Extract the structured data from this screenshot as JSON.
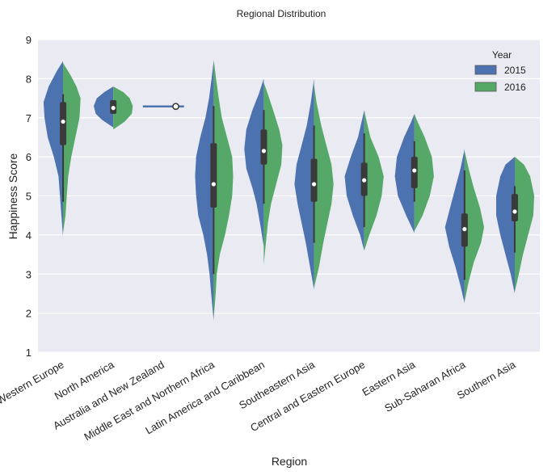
{
  "chart_data": {
    "type": "violin",
    "title": "Regional Distribution",
    "xlabel": "Region",
    "ylabel": "Happiness Score",
    "ylim": [
      1,
      9
    ],
    "yticks": [
      1,
      2,
      3,
      4,
      5,
      6,
      7,
      8,
      9
    ],
    "grid": true,
    "legend": {
      "title": "Year",
      "position": "top-right",
      "entries": [
        "2015",
        "2016"
      ]
    },
    "colors": {
      "2015": "#4c72b0",
      "2016": "#55a868",
      "background": "#eaeaf2"
    },
    "categories": [
      "Western Europe",
      "North America",
      "Australia and New Zealand",
      "Middle East and Northern Africa",
      "Latin America and Caribbean",
      "Southeastern Asia",
      "Central and Eastern Europe",
      "Eastern Asia",
      "Sub-Saharan Africa",
      "Southern Asia"
    ],
    "regions": [
      {
        "name": "Western Europe",
        "median": 6.9,
        "q1": 6.3,
        "q3": 7.4,
        "whisker": [
          4.85,
          7.6
        ],
        "s2015": {
          "range": [
            3.95,
            8.45
          ],
          "profile": [
            [
              3.95,
              0
            ],
            [
              4.5,
              0.08
            ],
            [
              5.0,
              0.15
            ],
            [
              5.5,
              0.22
            ],
            [
              6.0,
              0.45
            ],
            [
              6.5,
              0.75
            ],
            [
              7.0,
              0.9
            ],
            [
              7.4,
              0.95
            ],
            [
              7.8,
              0.7
            ],
            [
              8.2,
              0.3
            ],
            [
              8.45,
              0
            ]
          ]
        },
        "s2016": {
          "range": [
            4.05,
            8.4
          ],
          "profile": [
            [
              4.05,
              0
            ],
            [
              4.5,
              0.12
            ],
            [
              5.0,
              0.18
            ],
            [
              5.5,
              0.25
            ],
            [
              6.0,
              0.4
            ],
            [
              6.5,
              0.6
            ],
            [
              7.0,
              0.8
            ],
            [
              7.5,
              0.85
            ],
            [
              7.8,
              0.65
            ],
            [
              8.1,
              0.35
            ],
            [
              8.4,
              0
            ]
          ]
        }
      },
      {
        "name": "North America",
        "median": 7.25,
        "q1": 7.1,
        "q3": 7.45,
        "whisker": [
          7.1,
          7.45
        ],
        "s2015": {
          "range": [
            6.75,
            7.8
          ],
          "profile": [
            [
              6.75,
              0
            ],
            [
              6.95,
              0.55
            ],
            [
              7.1,
              0.85
            ],
            [
              7.3,
              0.95
            ],
            [
              7.5,
              0.8
            ],
            [
              7.65,
              0.45
            ],
            [
              7.8,
              0
            ]
          ]
        },
        "s2016": {
          "range": [
            6.7,
            7.8
          ],
          "profile": [
            [
              6.7,
              0
            ],
            [
              6.9,
              0.55
            ],
            [
              7.1,
              0.9
            ],
            [
              7.3,
              0.95
            ],
            [
              7.5,
              0.8
            ],
            [
              7.65,
              0.5
            ],
            [
              7.8,
              0
            ]
          ]
        }
      },
      {
        "name": "Australia and New Zealand",
        "median": 7.29,
        "q1": 7.28,
        "q3": 7.29,
        "whisker": [
          7.28,
          7.29
        ],
        "s2015": {
          "range": [
            7.28,
            7.29
          ],
          "profile": []
        },
        "s2016": {
          "range": [
            7.28,
            7.29
          ],
          "profile": []
        }
      },
      {
        "name": "Middle East and Northern Africa",
        "median": 5.3,
        "q1": 4.7,
        "q3": 6.35,
        "whisker": [
          3.0,
          7.3
        ],
        "s2015": {
          "range": [
            1.8,
            8.45
          ],
          "profile": [
            [
              1.8,
              0
            ],
            [
              2.5,
              0.12
            ],
            [
              3.0,
              0.2
            ],
            [
              3.5,
              0.32
            ],
            [
              4.0,
              0.5
            ],
            [
              4.5,
              0.75
            ],
            [
              5.0,
              0.85
            ],
            [
              5.5,
              0.9
            ],
            [
              6.0,
              0.85
            ],
            [
              6.5,
              0.65
            ],
            [
              7.0,
              0.4
            ],
            [
              7.5,
              0.22
            ],
            [
              8.0,
              0.1
            ],
            [
              8.45,
              0
            ]
          ]
        },
        "s2016": {
          "range": [
            1.85,
            8.5
          ],
          "profile": [
            [
              1.85,
              0
            ],
            [
              2.5,
              0.1
            ],
            [
              3.0,
              0.15
            ],
            [
              3.5,
              0.3
            ],
            [
              4.0,
              0.55
            ],
            [
              4.5,
              0.75
            ],
            [
              5.0,
              0.9
            ],
            [
              5.5,
              0.95
            ],
            [
              6.0,
              0.9
            ],
            [
              6.5,
              0.65
            ],
            [
              7.0,
              0.4
            ],
            [
              7.5,
              0.25
            ],
            [
              8.0,
              0.12
            ],
            [
              8.5,
              0
            ]
          ]
        }
      },
      {
        "name": "Latin America and Caribbean",
        "median": 6.15,
        "q1": 5.8,
        "q3": 6.7,
        "whisker": [
          4.8,
          7.2
        ],
        "s2015": {
          "range": [
            3.7,
            8.0
          ],
          "profile": [
            [
              3.7,
              0
            ],
            [
              4.2,
              0.15
            ],
            [
              4.8,
              0.35
            ],
            [
              5.2,
              0.55
            ],
            [
              5.7,
              0.85
            ],
            [
              6.2,
              0.95
            ],
            [
              6.7,
              0.85
            ],
            [
              7.2,
              0.55
            ],
            [
              7.6,
              0.25
            ],
            [
              8.0,
              0
            ]
          ]
        },
        "s2016": {
          "range": [
            3.25,
            7.9
          ],
          "profile": [
            [
              3.25,
              0
            ],
            [
              3.8,
              0.1
            ],
            [
              4.3,
              0.2
            ],
            [
              4.8,
              0.35
            ],
            [
              5.3,
              0.6
            ],
            [
              5.8,
              0.85
            ],
            [
              6.3,
              0.9
            ],
            [
              6.7,
              0.75
            ],
            [
              7.2,
              0.45
            ],
            [
              7.6,
              0.2
            ],
            [
              7.9,
              0
            ]
          ]
        }
      },
      {
        "name": "Southeastern Asia",
        "median": 5.3,
        "q1": 4.85,
        "q3": 5.95,
        "whisker": [
          3.8,
          6.8
        ],
        "s2015": {
          "range": [
            2.6,
            8.0
          ],
          "profile": [
            [
              2.6,
              0
            ],
            [
              3.2,
              0.2
            ],
            [
              3.8,
              0.4
            ],
            [
              4.3,
              0.6
            ],
            [
              4.8,
              0.8
            ],
            [
              5.3,
              0.95
            ],
            [
              5.8,
              0.85
            ],
            [
              6.3,
              0.6
            ],
            [
              6.8,
              0.35
            ],
            [
              7.4,
              0.15
            ],
            [
              8.0,
              0
            ]
          ]
        },
        "s2016": {
          "range": [
            2.65,
            7.85
          ],
          "profile": [
            [
              2.65,
              0
            ],
            [
              3.2,
              0.25
            ],
            [
              3.8,
              0.45
            ],
            [
              4.3,
              0.65
            ],
            [
              4.8,
              0.85
            ],
            [
              5.3,
              0.95
            ],
            [
              5.8,
              0.85
            ],
            [
              6.3,
              0.6
            ],
            [
              6.8,
              0.35
            ],
            [
              7.4,
              0.12
            ],
            [
              7.85,
              0
            ]
          ]
        }
      },
      {
        "name": "Central and Eastern Europe",
        "median": 5.4,
        "q1": 5.0,
        "q3": 5.85,
        "whisker": [
          4.2,
          6.6
        ],
        "s2015": {
          "range": [
            3.6,
            7.2
          ],
          "profile": [
            [
              3.6,
              0
            ],
            [
              4.0,
              0.2
            ],
            [
              4.5,
              0.55
            ],
            [
              5.0,
              0.85
            ],
            [
              5.5,
              0.95
            ],
            [
              6.0,
              0.65
            ],
            [
              6.5,
              0.3
            ],
            [
              7.0,
              0.08
            ],
            [
              7.2,
              0
            ]
          ]
        },
        "s2016": {
          "range": [
            3.6,
            7.2
          ],
          "profile": [
            [
              3.6,
              0
            ],
            [
              4.0,
              0.25
            ],
            [
              4.5,
              0.6
            ],
            [
              5.0,
              0.85
            ],
            [
              5.5,
              0.95
            ],
            [
              6.0,
              0.7
            ],
            [
              6.5,
              0.3
            ],
            [
              7.0,
              0.08
            ],
            [
              7.2,
              0
            ]
          ]
        }
      },
      {
        "name": "Eastern Asia",
        "median": 5.65,
        "q1": 5.2,
        "q3": 6.0,
        "whisker": [
          4.85,
          6.4
        ],
        "s2015": {
          "range": [
            4.05,
            7.1
          ],
          "profile": [
            [
              4.05,
              0
            ],
            [
              4.5,
              0.4
            ],
            [
              5.0,
              0.8
            ],
            [
              5.5,
              0.95
            ],
            [
              6.0,
              0.85
            ],
            [
              6.5,
              0.5
            ],
            [
              6.9,
              0.15
            ],
            [
              7.1,
              0
            ]
          ]
        },
        "s2016": {
          "range": [
            4.1,
            7.1
          ],
          "profile": [
            [
              4.1,
              0
            ],
            [
              4.5,
              0.4
            ],
            [
              5.0,
              0.75
            ],
            [
              5.5,
              0.95
            ],
            [
              6.0,
              0.85
            ],
            [
              6.5,
              0.5
            ],
            [
              6.9,
              0.15
            ],
            [
              7.1,
              0
            ]
          ]
        }
      },
      {
        "name": "Sub-Saharan Africa",
        "median": 4.15,
        "q1": 3.7,
        "q3": 4.55,
        "whisker": [
          2.85,
          5.65
        ],
        "s2015": {
          "range": [
            2.25,
            6.2
          ],
          "profile": [
            [
              2.25,
              0
            ],
            [
              2.7,
              0.2
            ],
            [
              3.2,
              0.45
            ],
            [
              3.7,
              0.75
            ],
            [
              4.2,
              0.95
            ],
            [
              4.7,
              0.7
            ],
            [
              5.2,
              0.45
            ],
            [
              5.7,
              0.2
            ],
            [
              6.2,
              0
            ]
          ]
        },
        "s2016": {
          "range": [
            2.3,
            6.15
          ],
          "profile": [
            [
              2.3,
              0
            ],
            [
              2.8,
              0.2
            ],
            [
              3.3,
              0.45
            ],
            [
              3.8,
              0.8
            ],
            [
              4.2,
              0.95
            ],
            [
              4.7,
              0.75
            ],
            [
              5.2,
              0.45
            ],
            [
              5.7,
              0.2
            ],
            [
              6.15,
              0
            ]
          ]
        }
      },
      {
        "name": "Southern Asia",
        "median": 4.6,
        "q1": 4.35,
        "q3": 5.05,
        "whisker": [
          3.55,
          5.25
        ],
        "s2015": {
          "range": [
            2.5,
            6.0
          ],
          "profile": [
            [
              2.5,
              0
            ],
            [
              3.0,
              0.2
            ],
            [
              3.5,
              0.45
            ],
            [
              4.0,
              0.7
            ],
            [
              4.5,
              0.9
            ],
            [
              5.0,
              0.9
            ],
            [
              5.5,
              0.7
            ],
            [
              5.8,
              0.45
            ],
            [
              6.0,
              0
            ]
          ]
        },
        "s2016": {
          "range": [
            2.55,
            6.0
          ],
          "profile": [
            [
              2.55,
              0
            ],
            [
              3.0,
              0.2
            ],
            [
              3.5,
              0.4
            ],
            [
              4.0,
              0.65
            ],
            [
              4.5,
              0.9
            ],
            [
              5.0,
              0.95
            ],
            [
              5.5,
              0.75
            ],
            [
              5.8,
              0.45
            ],
            [
              6.0,
              0
            ]
          ]
        }
      }
    ]
  }
}
